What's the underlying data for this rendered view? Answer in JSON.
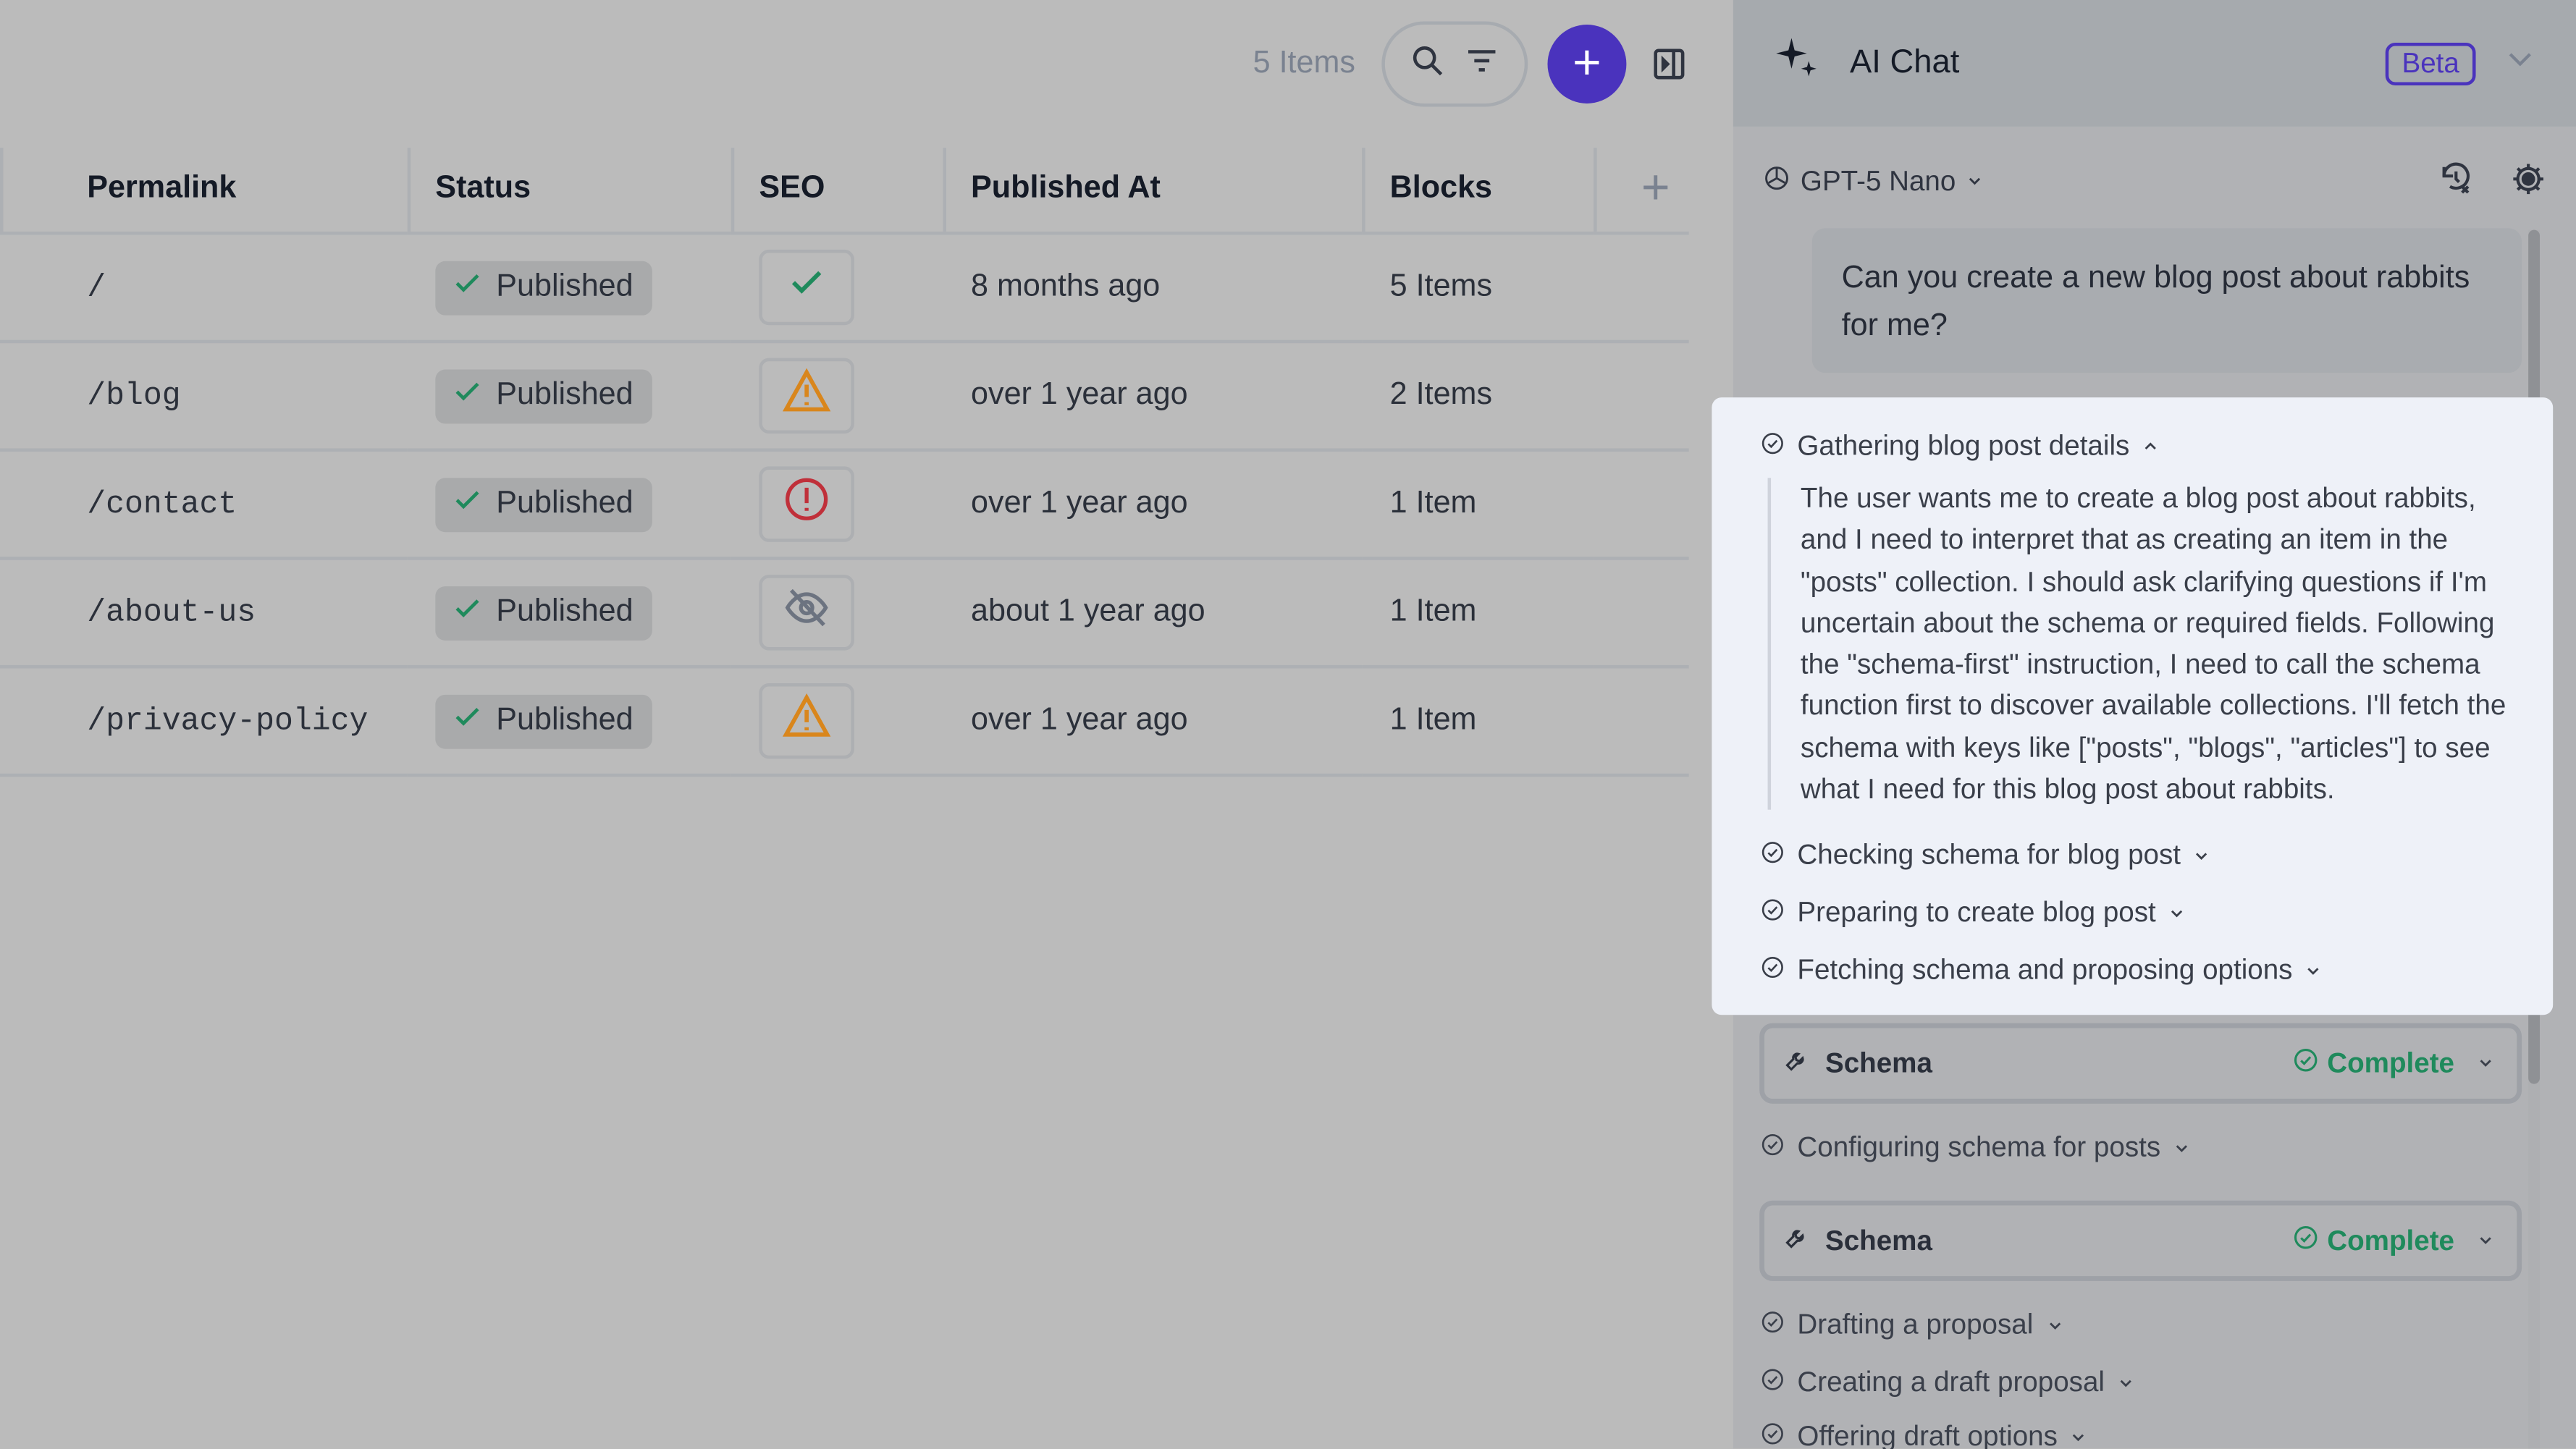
{
  "toolbar": {
    "count": "5 Items",
    "icons": [
      "search-icon",
      "filter-icon",
      "plus-icon",
      "sidebar-toggle-icon"
    ]
  },
  "table": {
    "columns": [
      "Permalink",
      "Status",
      "SEO",
      "Published At",
      "Blocks"
    ],
    "rows": [
      {
        "permalink": "/",
        "status": "Published",
        "seo": "check",
        "published_at": "8 months ago",
        "blocks": "5 Items"
      },
      {
        "permalink": "/blog",
        "status": "Published",
        "seo": "warning",
        "published_at": "over 1 year ago",
        "blocks": "2 Items"
      },
      {
        "permalink": "/contact",
        "status": "Published",
        "seo": "error",
        "published_at": "over 1 year ago",
        "blocks": "1 Item"
      },
      {
        "permalink": "/about-us",
        "status": "Published",
        "seo": "hidden",
        "published_at": "about 1 year ago",
        "blocks": "1 Item"
      },
      {
        "permalink": "/privacy-policy",
        "status": "Published",
        "seo": "warning",
        "published_at": "over 1 year ago",
        "blocks": "1 Item"
      }
    ]
  },
  "chat": {
    "title": "AI Chat",
    "badge": "Beta",
    "model": "GPT-5 Nano",
    "user_message": "Can you create a new blog post about rabbits for me?",
    "steps": [
      {
        "label": "Gathering blog post details",
        "expanded": true
      },
      {
        "label": "Checking schema for blog post"
      },
      {
        "label": "Preparing to create blog post"
      },
      {
        "label": "Fetching schema and proposing options"
      },
      {
        "label": "Configuring schema for posts"
      },
      {
        "label": "Drafting a proposal"
      },
      {
        "label": "Creating a draft proposal"
      },
      {
        "label": "Offering draft options"
      }
    ],
    "thought": "The user wants me to create a blog post about rabbits, and I need to interpret that as creating an item in the \"posts\" collection. I should ask clarifying questions if I'm uncertain about the schema or required fields. Following the \"schema-first\" instruction, I need to call the schema function first to discover available collections. I'll fetch the schema with keys like [\"posts\", \"blogs\", \"articles\"] to see what I need for this blog post about rabbits.",
    "tools": [
      {
        "name": "Schema",
        "status": "Complete"
      },
      {
        "name": "Schema",
        "status": "Complete"
      }
    ]
  },
  "colors": {
    "accent": "#4a33bd",
    "success": "#1f8a5c",
    "warning": "#d9861c",
    "error": "#c0303a"
  }
}
